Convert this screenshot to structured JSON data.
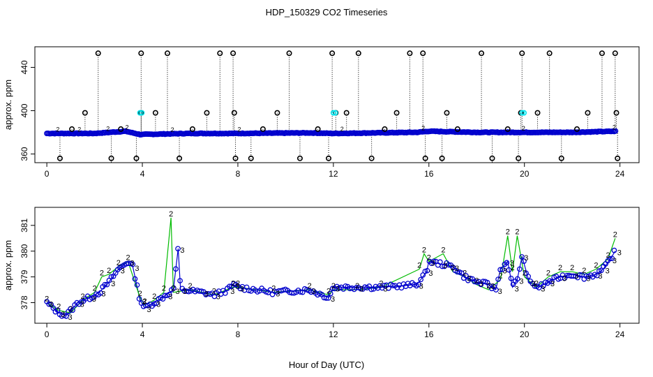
{
  "title": "HDP_150329  CO2 Timeseries",
  "xlabel": "Hour of Day (UTC)",
  "colors": {
    "primary": "#0000cd",
    "secondary": "#00bb00",
    "highlight": "#00e5ee",
    "outlier": "#000000"
  },
  "chart_data": [
    {
      "type": "scatter",
      "panel": "top",
      "ylabel": "approx. ppm",
      "xlim": [
        -0.5,
        24.8
      ],
      "ylim": [
        352,
        459
      ],
      "x_ticks": [
        "0",
        "4",
        "8",
        "12",
        "16",
        "20",
        "24"
      ],
      "y_ticks": [
        "360",
        "400",
        "440"
      ],
      "baseline": {
        "points": [
          [
            0,
            379
          ],
          [
            2,
            379
          ],
          [
            3.3,
            381
          ],
          [
            3.9,
            378
          ],
          [
            6,
            379
          ],
          [
            8,
            379
          ],
          [
            11,
            379.5
          ],
          [
            12,
            379
          ],
          [
            15.5,
            380
          ],
          [
            16,
            381
          ],
          [
            18,
            380
          ],
          [
            20,
            380
          ],
          [
            22,
            380
          ],
          [
            23.8,
            381
          ]
        ]
      },
      "highlight_x": [
        3.9,
        12.0,
        19.9
      ],
      "outliers_high": [
        2.15,
        3.95,
        5.05,
        7.25,
        7.8,
        10.15,
        11.95,
        13.05,
        15.2,
        15.75,
        18.2,
        19.9,
        21.05,
        23.25,
        23.8
      ],
      "outliers_mid": [
        1.6,
        3.95,
        4.55,
        6.7,
        7.85,
        9.65,
        12.1,
        12.55,
        14.65,
        16.75,
        19.85,
        20.55,
        22.65,
        23.85
      ],
      "outliers_low": [
        0.55,
        2.7,
        3.75,
        5.55,
        7.9,
        8.55,
        10.6,
        11.8,
        13.6,
        15.85,
        16.55,
        18.65,
        19.75,
        21.55,
        23.9
      ],
      "outliers_small": [
        1.05,
        3.1,
        6.1,
        9.05,
        11.35,
        14.15,
        17.2,
        19.3,
        22.2
      ]
    },
    {
      "type": "line",
      "panel": "bottom",
      "ylabel": "approx. ppm",
      "xlim": [
        -0.5,
        24.8
      ],
      "ylim": [
        377.2,
        381.7
      ],
      "x_ticks": [
        "0",
        "4",
        "8",
        "12",
        "16",
        "20",
        "24"
      ],
      "y_ticks": [
        "378",
        "379",
        "380",
        "381"
      ],
      "series": [
        {
          "name": "3",
          "points": [
            [
              0,
              378.0
            ],
            [
              0.5,
              377.6
            ],
            [
              0.8,
              377.5
            ],
            [
              1.3,
              378.0
            ],
            [
              1.8,
              378.2
            ],
            [
              2.2,
              378.4
            ],
            [
              2.6,
              378.8
            ],
            [
              3.0,
              379.3
            ],
            [
              3.4,
              379.6
            ],
            [
              3.6,
              379.4
            ],
            [
              3.9,
              378.1
            ],
            [
              4.1,
              377.8
            ],
            [
              4.5,
              378.0
            ],
            [
              5.0,
              378.3
            ],
            [
              5.3,
              378.5
            ],
            [
              5.5,
              380.1
            ],
            [
              5.6,
              378.5
            ],
            [
              6.5,
              378.4
            ],
            [
              7.0,
              378.3
            ],
            [
              7.6,
              378.5
            ],
            [
              7.8,
              378.7
            ],
            [
              8.0,
              378.6
            ],
            [
              9.5,
              378.4
            ],
            [
              11.0,
              378.5
            ],
            [
              11.8,
              378.2
            ],
            [
              12.0,
              378.6
            ],
            [
              13.0,
              378.6
            ],
            [
              14.0,
              378.6
            ],
            [
              15.5,
              378.7
            ],
            [
              15.9,
              379.2
            ],
            [
              16.0,
              379.6
            ],
            [
              16.5,
              379.5
            ],
            [
              17.0,
              379.4
            ],
            [
              17.5,
              379.0
            ],
            [
              18.0,
              378.8
            ],
            [
              18.5,
              378.7
            ],
            [
              18.8,
              378.5
            ],
            [
              19.0,
              379.3
            ],
            [
              19.3,
              379.6
            ],
            [
              19.5,
              378.6
            ],
            [
              19.7,
              378.9
            ],
            [
              19.9,
              379.8
            ],
            [
              20.2,
              378.8
            ],
            [
              20.6,
              378.6
            ],
            [
              21.0,
              378.8
            ],
            [
              21.5,
              379.0
            ],
            [
              22.0,
              379.1
            ],
            [
              22.5,
              379.0
            ],
            [
              23.0,
              379.1
            ],
            [
              23.3,
              379.3
            ],
            [
              23.6,
              379.7
            ],
            [
              23.8,
              380.0
            ]
          ]
        },
        {
          "name": "2",
          "points": [
            [
              0,
              378.0
            ],
            [
              0.5,
              377.7
            ],
            [
              1.0,
              377.6
            ],
            [
              1.5,
              378.1
            ],
            [
              2.0,
              378.4
            ],
            [
              2.3,
              379.0
            ],
            [
              2.6,
              379.1
            ],
            [
              3.0,
              379.4
            ],
            [
              3.4,
              379.6
            ],
            [
              3.9,
              378.2
            ],
            [
              4.1,
              377.9
            ],
            [
              4.5,
              378.1
            ],
            [
              4.9,
              378.4
            ],
            [
              5.2,
              381.3
            ],
            [
              5.3,
              378.4
            ],
            [
              6.0,
              378.5
            ],
            [
              7.0,
              378.3
            ],
            [
              7.8,
              378.6
            ],
            [
              8.0,
              378.6
            ],
            [
              9.5,
              378.4
            ],
            [
              11.0,
              378.5
            ],
            [
              11.8,
              378.3
            ],
            [
              12.0,
              378.5
            ],
            [
              13.0,
              378.5
            ],
            [
              14.0,
              378.6
            ],
            [
              15.6,
              379.3
            ],
            [
              15.8,
              379.9
            ],
            [
              16.0,
              379.6
            ],
            [
              16.6,
              379.9
            ],
            [
              17.0,
              379.2
            ],
            [
              17.5,
              379.0
            ],
            [
              18.0,
              378.7
            ],
            [
              18.5,
              378.5
            ],
            [
              19.0,
              378.9
            ],
            [
              19.3,
              380.6
            ],
            [
              19.5,
              379.2
            ],
            [
              19.7,
              380.6
            ],
            [
              20.0,
              379.0
            ],
            [
              20.5,
              378.6
            ],
            [
              21.0,
              379.0
            ],
            [
              21.5,
              379.2
            ],
            [
              22.0,
              379.2
            ],
            [
              22.5,
              379.1
            ],
            [
              23.0,
              379.3
            ],
            [
              23.5,
              379.7
            ],
            [
              23.8,
              380.5
            ]
          ]
        }
      ]
    }
  ]
}
